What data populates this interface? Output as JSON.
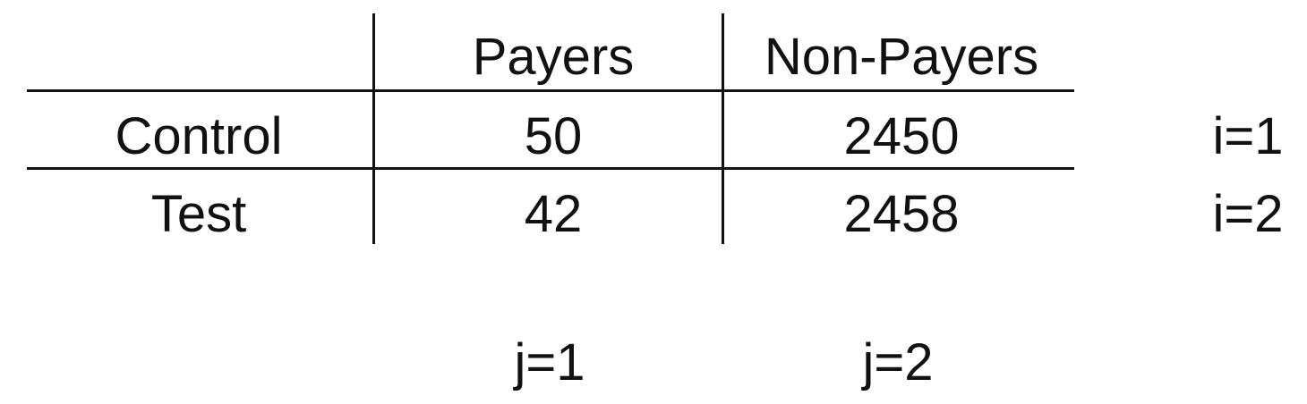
{
  "table": {
    "columns": [
      "Payers",
      "Non-Payers"
    ],
    "rows": [
      {
        "label": "Control",
        "values": [
          "50",
          "2450"
        ],
        "index": "i=1"
      },
      {
        "label": "Test",
        "values": [
          "42",
          "2458"
        ],
        "index": "i=2"
      }
    ],
    "column_indices": [
      "j=1",
      "j=2"
    ]
  }
}
